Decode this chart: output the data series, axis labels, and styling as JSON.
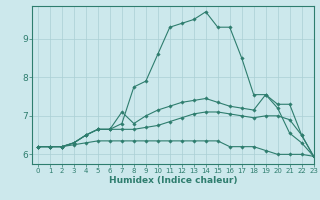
{
  "xlabel": "Humidex (Indice chaleur)",
  "ylabel": "",
  "bg_color": "#cce8ec",
  "line_color": "#2e7d6e",
  "grid_color": "#aacfd4",
  "xlim": [
    -0.5,
    23
  ],
  "ylim": [
    5.75,
    9.85
  ],
  "yticks": [
    6,
    7,
    8,
    9
  ],
  "xticks": [
    0,
    1,
    2,
    3,
    4,
    5,
    6,
    7,
    8,
    9,
    10,
    11,
    12,
    13,
    14,
    15,
    16,
    17,
    18,
    19,
    20,
    21,
    22,
    23
  ],
  "series": [
    [
      6.2,
      6.2,
      6.2,
      6.25,
      6.3,
      6.35,
      6.35,
      6.35,
      6.35,
      6.35,
      6.35,
      6.35,
      6.35,
      6.35,
      6.35,
      6.35,
      6.2,
      6.2,
      6.2,
      6.1,
      6.0,
      6.0,
      6.0,
      5.95
    ],
    [
      6.2,
      6.2,
      6.2,
      6.3,
      6.5,
      6.65,
      6.65,
      6.65,
      6.65,
      6.7,
      6.75,
      6.85,
      6.95,
      7.05,
      7.1,
      7.1,
      7.05,
      7.0,
      6.95,
      7.0,
      7.0,
      6.9,
      6.5,
      5.95
    ],
    [
      6.2,
      6.2,
      6.2,
      6.3,
      6.5,
      6.65,
      6.65,
      7.1,
      6.8,
      7.0,
      7.15,
      7.25,
      7.35,
      7.4,
      7.45,
      7.35,
      7.25,
      7.2,
      7.15,
      7.55,
      7.3,
      7.3,
      6.5,
      5.95
    ],
    [
      6.2,
      6.2,
      6.2,
      6.3,
      6.5,
      6.65,
      6.65,
      6.8,
      7.75,
      7.9,
      8.6,
      9.3,
      9.4,
      9.5,
      9.7,
      9.3,
      9.3,
      8.5,
      7.55,
      7.55,
      7.2,
      6.55,
      6.3,
      5.95
    ]
  ]
}
